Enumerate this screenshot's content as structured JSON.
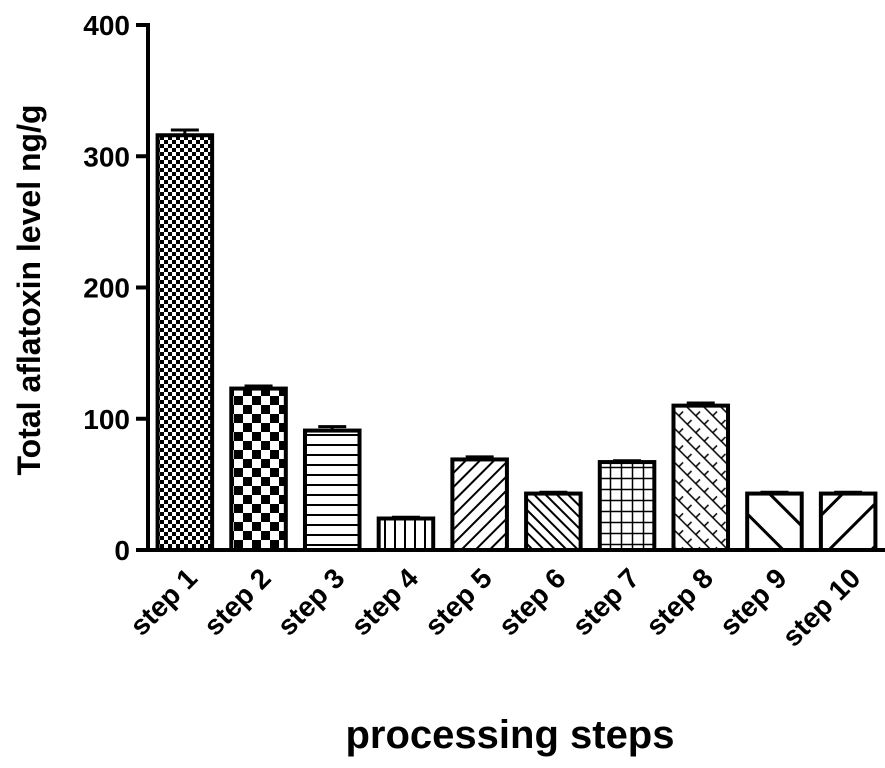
{
  "chart_data": {
    "type": "bar",
    "x_label": "processing steps",
    "y_label": "Total aflatoxin level ng/g",
    "categories": [
      "step 1",
      "step 2",
      "step 3",
      "step 4",
      "step 5",
      "step 6",
      "step 7",
      "step 8",
      "step 9",
      "step 10"
    ],
    "values": [
      316,
      123,
      91,
      24,
      69,
      43,
      67,
      110,
      43,
      43
    ],
    "errors": [
      4,
      2,
      3,
      1,
      2,
      1,
      1,
      2,
      1,
      1
    ],
    "color": "#000000",
    "ylim": [
      0,
      400
    ],
    "yticks": [
      0,
      100,
      200,
      300,
      400
    ],
    "grid": false
  }
}
